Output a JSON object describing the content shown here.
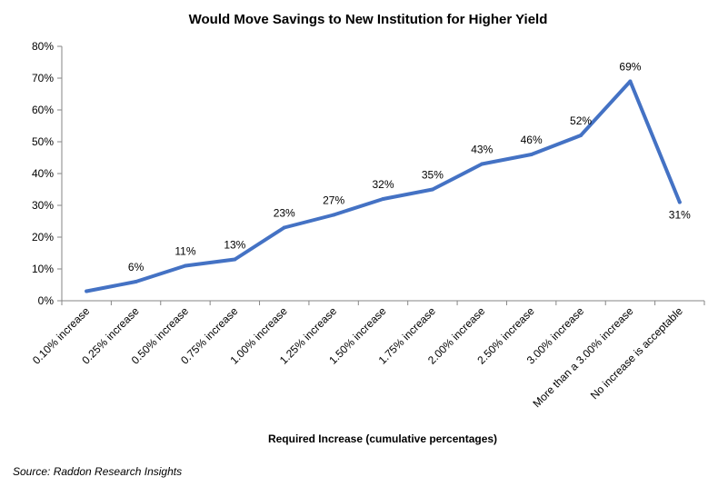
{
  "chart_data": {
    "type": "line",
    "title": "Would Move Savings to New Institution for Higher Yield",
    "xlabel": "Required Increase (cumulative percentages)",
    "ylabel": "",
    "ylim": [
      0,
      80
    ],
    "yticks": [
      "0%",
      "10%",
      "20%",
      "30%",
      "40%",
      "50%",
      "60%",
      "70%",
      "80%"
    ],
    "categories": [
      "0.10% increase",
      "0.25% increase",
      "0.50% increase",
      "0.75% increase",
      "1.00% increase",
      "1.25% increase",
      "1.50% increase",
      "1.75% increase",
      "2.00% increase",
      "2.50% increase",
      "3.00% increase",
      "More than a 3.00% increase",
      "No increase is acceptable"
    ],
    "series": [
      {
        "name": "Would Move Savings",
        "color": "#4472C4",
        "values": [
          3,
          6,
          11,
          13,
          23,
          27,
          32,
          35,
          43,
          46,
          52,
          69,
          31
        ],
        "labels": [
          "",
          "6%",
          "11%",
          "13%",
          "23%",
          "27%",
          "32%",
          "35%",
          "43%",
          "46%",
          "52%",
          "69%",
          "31%"
        ]
      }
    ],
    "grid": false,
    "legend": "none"
  },
  "source": "Source: Raddon Research Insights"
}
